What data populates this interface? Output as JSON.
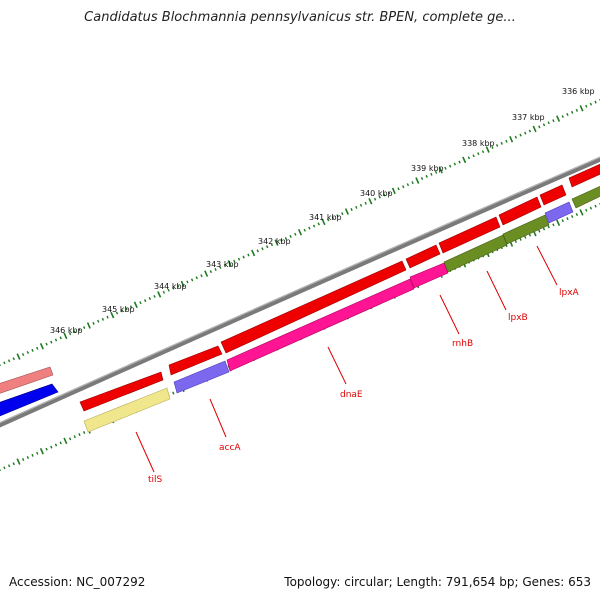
{
  "title": "Candidatus Blochmannia pennsylvanicus str. BPEN, complete ge...",
  "footer": {
    "accession": "Accession: NC_007292",
    "summary": "Topology: circular; Length: 791,654 bp; Genes: 653"
  },
  "scale": {
    "unit": "kbp",
    "tick_labels": [
      "336 kbp",
      "337 kbp",
      "338 kbp",
      "339 kbp",
      "340 kbp",
      "341 kbp",
      "342 kbp",
      "343 kbp",
      "344 kbp",
      "345 kbp",
      "346 kbp"
    ]
  },
  "colors": {
    "backbone": "#7a7a7a",
    "forward_cds": "#ee0000",
    "ruler": "#1f7a1f",
    "label": "#e00000"
  },
  "genes": [
    {
      "name": "tilS",
      "color": "#f0e68c"
    },
    {
      "name": "accA",
      "color": "#7b68ee"
    },
    {
      "name": "dnaE",
      "color": "#ff1493"
    },
    {
      "name": "rnhB",
      "color": "#ff1493"
    },
    {
      "name": "lpxB",
      "color": "#6b8e23"
    },
    {
      "name": "lpxA",
      "color": "#6b8e23"
    }
  ]
}
